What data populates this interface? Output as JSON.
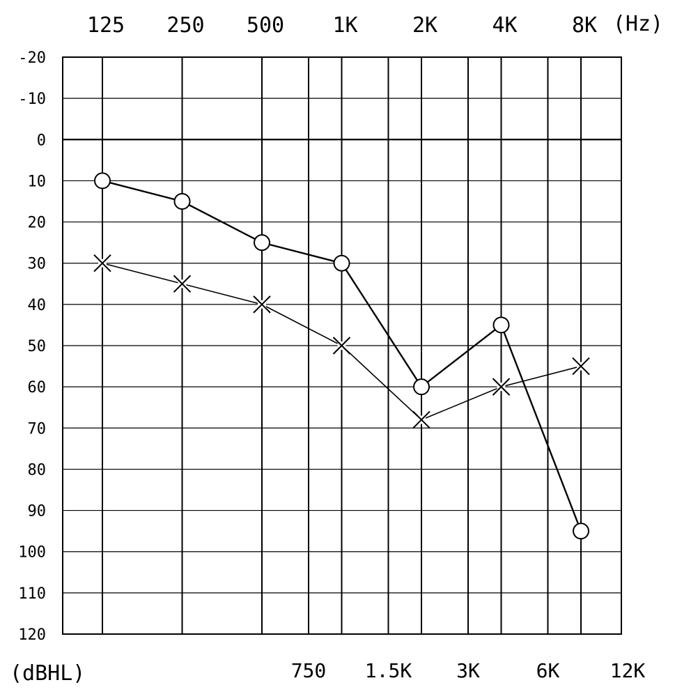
{
  "chart_data": {
    "type": "line",
    "title": "",
    "xlabel": "(Hz)",
    "ylabel": "(dBHL)",
    "x_scale": "log2",
    "y_inverted": true,
    "ylim": [
      -20,
      120
    ],
    "grid": true,
    "major_ticks_top": [
      {
        "freq": 125,
        "label": "125"
      },
      {
        "freq": 250,
        "label": "250"
      },
      {
        "freq": 500,
        "label": "500"
      },
      {
        "freq": 1000,
        "label": "1K"
      },
      {
        "freq": 2000,
        "label": "2K"
      },
      {
        "freq": 4000,
        "label": "4K"
      },
      {
        "freq": 8000,
        "label": "8K"
      }
    ],
    "minor_ticks_bottom": [
      {
        "freq": 750,
        "label": "750"
      },
      {
        "freq": 1500,
        "label": "1.5K"
      },
      {
        "freq": 3000,
        "label": "3K"
      },
      {
        "freq": 6000,
        "label": "6K"
      },
      {
        "freq": 12000,
        "label": "12K"
      }
    ],
    "y_ticks": [
      {
        "value": -20,
        "label": "-20"
      },
      {
        "value": -10,
        "label": "-10"
      },
      {
        "value": 0,
        "label": "0"
      },
      {
        "value": 10,
        "label": "10"
      },
      {
        "value": 20,
        "label": "20"
      },
      {
        "value": 30,
        "label": "30"
      },
      {
        "value": 40,
        "label": "40"
      },
      {
        "value": 50,
        "label": "50"
      },
      {
        "value": 60,
        "label": "60"
      },
      {
        "value": 70,
        "label": "70"
      },
      {
        "value": 80,
        "label": "80"
      },
      {
        "value": 90,
        "label": "90"
      },
      {
        "value": 100,
        "label": "100"
      },
      {
        "value": 110,
        "label": "110"
      },
      {
        "value": 120,
        "label": "120"
      }
    ],
    "series": [
      {
        "marker": "circle",
        "points": [
          {
            "freq": 125,
            "db": 10
          },
          {
            "freq": 250,
            "db": 15
          },
          {
            "freq": 500,
            "db": 25
          },
          {
            "freq": 1000,
            "db": 30
          },
          {
            "freq": 2000,
            "db": 60
          },
          {
            "freq": 4000,
            "db": 45
          },
          {
            "freq": 8000,
            "db": 95
          }
        ]
      },
      {
        "marker": "cross",
        "points": [
          {
            "freq": 125,
            "db": 30
          },
          {
            "freq": 250,
            "db": 35
          },
          {
            "freq": 500,
            "db": 40
          },
          {
            "freq": 1000,
            "db": 50
          },
          {
            "freq": 2000,
            "db": 68
          },
          {
            "freq": 4000,
            "db": 60
          },
          {
            "freq": 8000,
            "db": 55
          }
        ]
      }
    ]
  }
}
